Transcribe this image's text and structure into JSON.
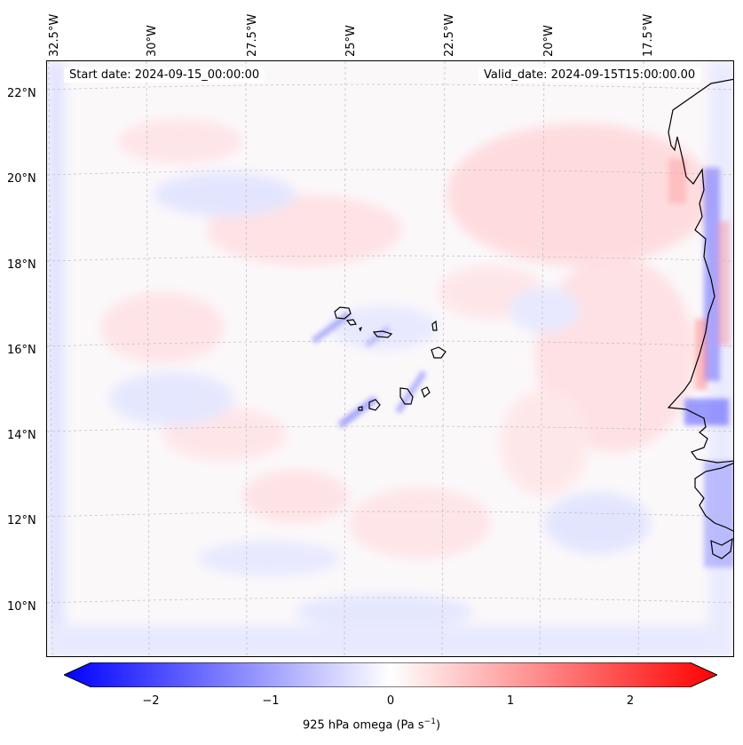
{
  "map": {
    "start_label": "Start date: 2024-09-15_00:00:00",
    "valid_label": "Valid_date: 2024-09-15T15:00:00.00",
    "lon_labels": [
      "32.5°W",
      "30°W",
      "27.5°W",
      "25°W",
      "22.5°W",
      "20°W",
      "17.5°W"
    ],
    "lat_labels": [
      "22°N",
      "20°N",
      "18°N",
      "16°N",
      "14°N",
      "12°N",
      "10°N"
    ]
  },
  "colorbar": {
    "ticks": [
      "−2",
      "−1",
      "0",
      "1",
      "2"
    ],
    "title_text": "925 hPa omega (Pa s",
    "title_exp": "−1",
    "title_close": ")",
    "min_color": "#0000ff",
    "mid_color": "#ffffff",
    "max_color": "#ff0000",
    "range": [
      -2.7,
      2.7
    ]
  }
}
